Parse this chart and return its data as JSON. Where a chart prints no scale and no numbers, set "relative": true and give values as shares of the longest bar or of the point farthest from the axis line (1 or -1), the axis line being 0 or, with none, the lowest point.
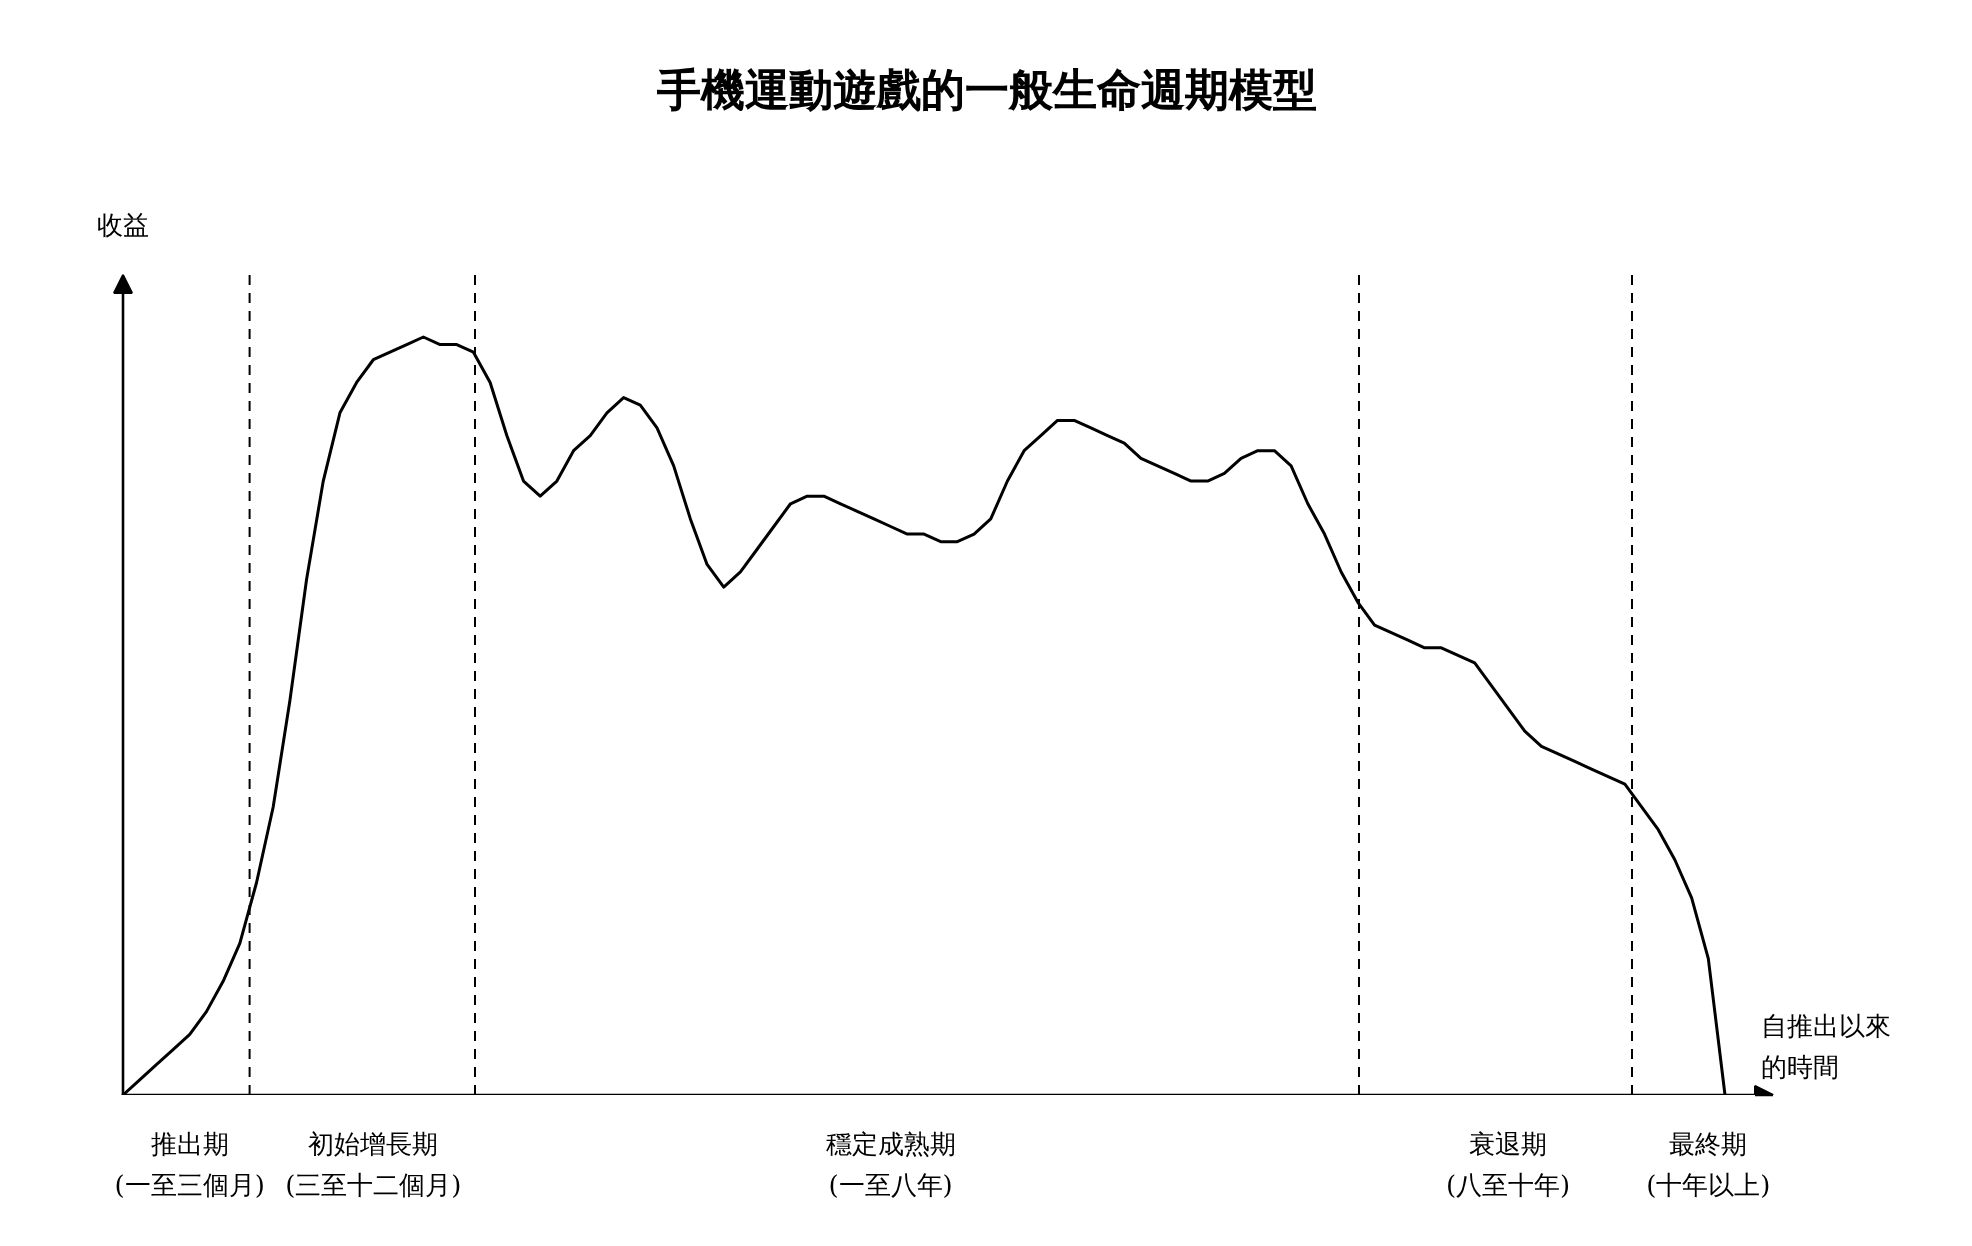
{
  "chart_data": {
    "type": "line",
    "title": "手機運動遊戲的一般生命週期模型",
    "ylabel": "收益",
    "xlabel": "自推出以來的時間",
    "relative": true,
    "grid": false,
    "color": "#000000",
    "categories": [
      null,
      null,
      null,
      null,
      "推出期\n(一至三個月)",
      null,
      null,
      null,
      null,
      null,
      null,
      null,
      null,
      null,
      null,
      "初始增長期\n(三至十二個月)",
      null,
      null,
      null,
      null,
      null,
      null,
      null,
      null,
      null,
      null,
      null,
      null,
      null,
      null,
      null,
      null,
      null,
      null,
      null,
      null,
      null,
      null,
      null,
      null,
      null,
      null,
      null,
      null,
      null,
      null,
      "穩定成熟期\n(一至八年)",
      null,
      null,
      null,
      null,
      null,
      null,
      null,
      null,
      null,
      null,
      null,
      null,
      null,
      null,
      null,
      null,
      null,
      null,
      null,
      null,
      null,
      null,
      null,
      null,
      null,
      null,
      null,
      null,
      null,
      null,
      null,
      null,
      null,
      null,
      null,
      null,
      "衰退期\n(八至十年)",
      null,
      null,
      null,
      null,
      null,
      null,
      null,
      null,
      null,
      null,
      null,
      "最終期\n(十年以上)",
      null
    ],
    "values": [
      0,
      0.02,
      0.04,
      0.06,
      0.08,
      0.11,
      0.15,
      0.2,
      0.28,
      0.38,
      0.52,
      0.68,
      0.81,
      0.9,
      0.94,
      0.97,
      0.98,
      0.99,
      1.0,
      0.99,
      0.99,
      0.98,
      0.94,
      0.87,
      0.81,
      0.79,
      0.81,
      0.85,
      0.87,
      0.9,
      0.92,
      0.91,
      0.88,
      0.83,
      0.76,
      0.7,
      0.67,
      0.69,
      0.72,
      0.75,
      0.78,
      0.79,
      0.79,
      0.78,
      0.77,
      0.76,
      0.75,
      0.74,
      0.74,
      0.73,
      0.73,
      0.74,
      0.76,
      0.81,
      0.85,
      0.87,
      0.89,
      0.89,
      0.88,
      0.87,
      0.86,
      0.84,
      0.83,
      0.82,
      0.81,
      0.81,
      0.82,
      0.84,
      0.85,
      0.85,
      0.83,
      0.78,
      0.74,
      0.69,
      0.65,
      0.62,
      0.61,
      0.6,
      0.59,
      0.59,
      0.58,
      0.57,
      0.54,
      0.51,
      0.48,
      0.46,
      0.45,
      0.44,
      0.43,
      0.42,
      0.41,
      0.38,
      0.35,
      0.31,
      0.26,
      0.18,
      0
    ]
  }
}
